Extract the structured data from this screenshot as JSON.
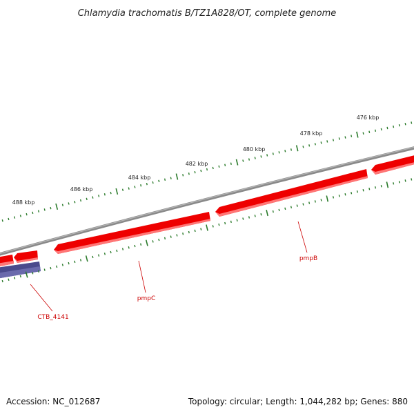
{
  "title": "Chlamydia trachomatis B/TZ1A828/OT, complete genome",
  "footer": {
    "accession": "Accession: NC_012687",
    "summary": "Topology: circular; Length: 1,044,282 bp; Genes: 880"
  },
  "ruler_labels": [
    "476 kbp",
    "478 kbp",
    "480 kbp",
    "482 kbp",
    "484 kbp",
    "486 kbp",
    "488 kbp"
  ],
  "genes": [
    {
      "label": "pmpB",
      "strand": "forward"
    },
    {
      "label": "pmpC",
      "strand": "forward"
    },
    {
      "label": "CTB_4141",
      "strand": "reverse"
    }
  ],
  "colors": {
    "backbone": "#8a8a8a",
    "gene_fill": "#ee0000",
    "gene_highlight": "#ff6666",
    "cds_other": "#4a4a8c",
    "tick": "#2a7a2a",
    "label_red": "#cc0000"
  }
}
